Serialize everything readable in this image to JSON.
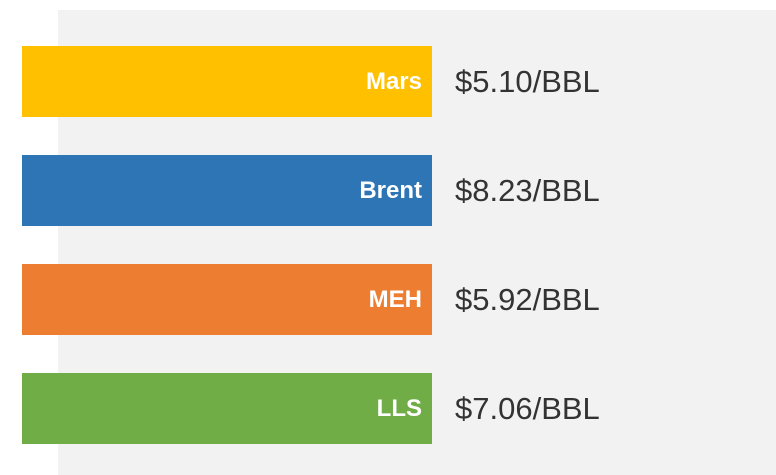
{
  "items": [
    {
      "label": "Mars",
      "value": "$5.10/BBL",
      "color": "#ffc000"
    },
    {
      "label": "Brent",
      "value": "$8.23/BBL",
      "color": "#2e75b6"
    },
    {
      "label": "MEH",
      "value": "$5.92/BBL",
      "color": "#ed7d31"
    },
    {
      "label": "LLS",
      "value": "$7.06/BBL",
      "color": "#70ad47"
    }
  ]
}
